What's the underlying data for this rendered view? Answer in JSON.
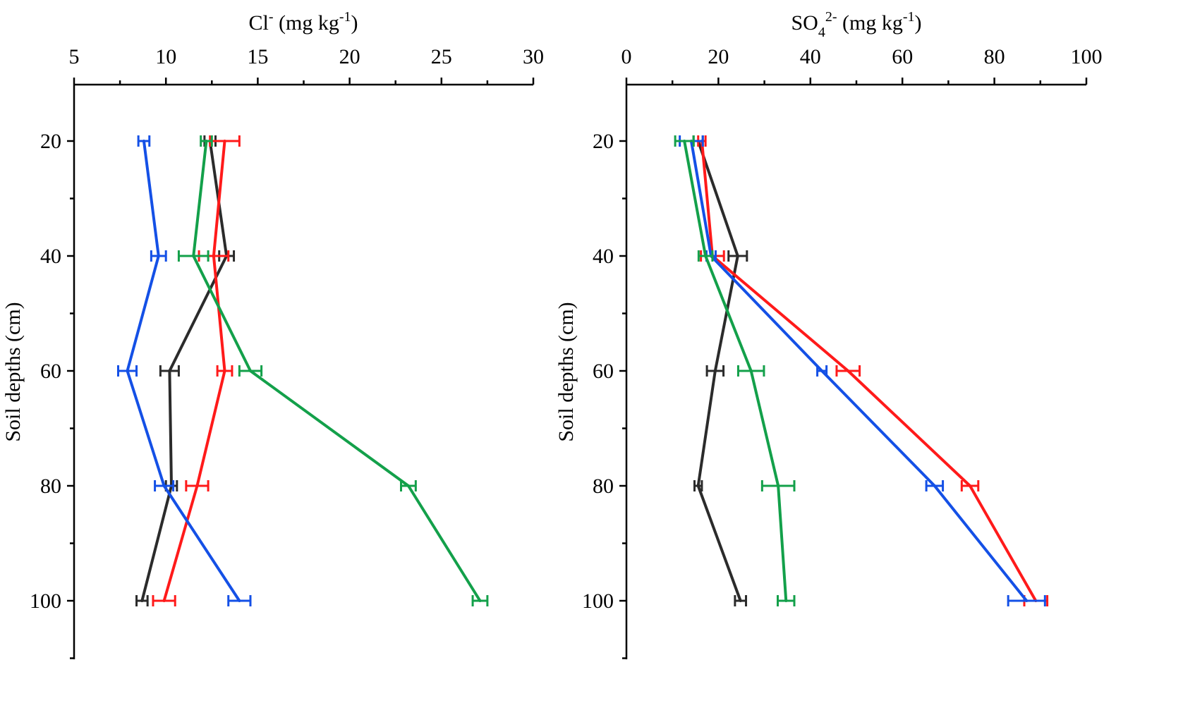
{
  "chart_data": [
    {
      "type": "line",
      "orientation": "depth-profile",
      "title": "",
      "xlabel_main": "Cl",
      "xlabel_sup": "-",
      "xlabel_unit": " (mg kg",
      "xlabel_unit_sup": "-1",
      "xlabel_close": ")",
      "ylabel": "Soil depths (cm)",
      "xlim": [
        5,
        30
      ],
      "ylim": [
        110,
        10
      ],
      "xticks": [
        5,
        10,
        15,
        20,
        25,
        30
      ],
      "yticks": [
        20,
        40,
        60,
        80,
        100
      ],
      "x_axis_position": "top",
      "grid": false,
      "depths": [
        20,
        40,
        60,
        80,
        100
      ],
      "series": [
        {
          "name": "black",
          "color": "#2b2b2b",
          "values": [
            12.4,
            13.3,
            10.2,
            10.3,
            8.7
          ],
          "errors": [
            0.3,
            0.4,
            0.5,
            0.3,
            0.3
          ]
        },
        {
          "name": "red",
          "color": "#ff1a1a",
          "values": [
            13.2,
            12.6,
            13.2,
            11.7,
            9.9
          ],
          "errors": [
            0.8,
            0.8,
            0.4,
            0.6,
            0.6
          ]
        },
        {
          "name": "blue",
          "color": "#1450e6",
          "values": [
            8.8,
            9.6,
            7.9,
            9.9,
            14.0
          ],
          "errors": [
            0.3,
            0.4,
            0.5,
            0.5,
            0.6
          ]
        },
        {
          "name": "green",
          "color": "#13a04a",
          "values": [
            12.2,
            11.5,
            14.6,
            23.2,
            27.1
          ],
          "errors": [
            0.3,
            0.8,
            0.6,
            0.4,
            0.4
          ]
        }
      ]
    },
    {
      "type": "line",
      "orientation": "depth-profile",
      "title": "",
      "xlabel_main": "SO",
      "xlabel_sub": "4",
      "xlabel_sup": "2-",
      "xlabel_unit": " (mg kg",
      "xlabel_unit_sup": "-1",
      "xlabel_close": ")",
      "ylabel": "Soil depths (cm)",
      "xlim": [
        0,
        100
      ],
      "ylim": [
        110,
        10
      ],
      "xticks": [
        0,
        20,
        40,
        60,
        80,
        100
      ],
      "yticks": [
        20,
        40,
        60,
        80,
        100
      ],
      "x_axis_position": "top",
      "grid": false,
      "depths": [
        20,
        40,
        60,
        80,
        100
      ],
      "series": [
        {
          "name": "black",
          "color": "#2b2b2b",
          "values": [
            15.6,
            24.2,
            19.3,
            15.6,
            24.8
          ],
          "errors": [
            1.0,
            2.0,
            1.8,
            0.8,
            1.2
          ]
        },
        {
          "name": "red",
          "color": "#ff1a1a",
          "values": [
            16.4,
            18.7,
            48.2,
            74.7,
            89.0
          ],
          "errors": [
            0.8,
            2.5,
            2.5,
            1.8,
            2.5
          ]
        },
        {
          "name": "blue",
          "color": "#1450e6",
          "values": [
            14.1,
            18.4,
            42.5,
            67.0,
            87.0
          ],
          "errors": [
            2.5,
            1.0,
            1.0,
            1.8,
            4.0
          ]
        },
        {
          "name": "green",
          "color": "#13a04a",
          "values": [
            12.6,
            17.2,
            27.1,
            33.0,
            34.7
          ],
          "errors": [
            2.0,
            1.5,
            2.8,
            3.5,
            1.8
          ]
        }
      ]
    }
  ]
}
